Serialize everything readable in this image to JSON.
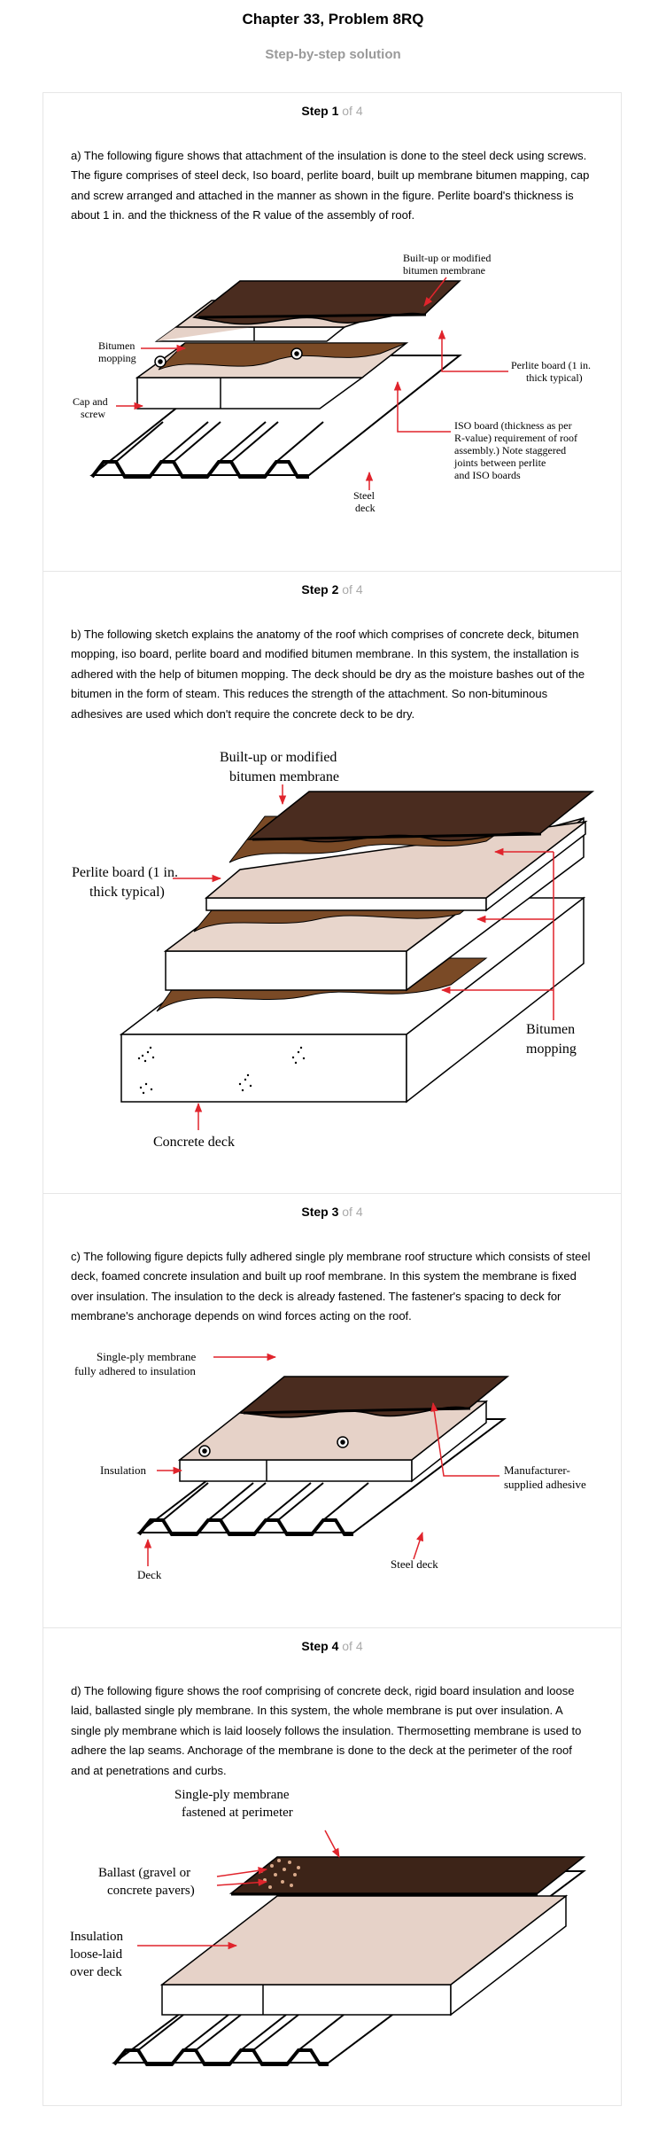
{
  "header": {
    "title": "Chapter 33, Problem 8RQ",
    "subtitle": "Step-by-step solution"
  },
  "steps": [
    {
      "label": "Step 1",
      "of": "of 4",
      "text": "a) The following figure shows that attachment of the insulation is done to the steel deck using screws. The figure comprises of steel deck, Iso board, perlite board, built up membrane bitumen mapping, cap and screw arranged and attached in the manner as shown in the figure. Perlite board's thickness is about 1 in. and the thickness of the R value of the assembly of roof.",
      "figure": {
        "membrane_1": "Built-up or modified",
        "membrane_2": "bitumen membrane",
        "bitumen_1": "Bitumen",
        "bitumen_2": "mopping",
        "cap_1": "Cap and",
        "cap_2": "screw",
        "perlite_1": "Perlite board (1 in.",
        "perlite_2": "thick typical)",
        "iso_1": "ISO board (thickness as per",
        "iso_2": "R-value) requirement of roof",
        "iso_3": "assembly.) Note staggered",
        "iso_4": "joints between perlite",
        "iso_5": "and ISO boards",
        "deck_1": "Steel",
        "deck_2": "deck"
      }
    },
    {
      "label": "Step 2",
      "of": "of 4",
      "text": "b) The following sketch explains the anatomy of the roof which comprises of concrete deck, bitumen mopping, iso board, perlite board and modified bitumen membrane. In this system, the installation is adhered with the help of bitumen mopping. The deck should be dry as the moisture bashes out of the bitumen in the form of steam. This reduces the strength of the attachment. So non-bituminous adhesives are used which don't require the concrete deck to be dry.",
      "figure": {
        "membrane_1": "Built-up or modified",
        "membrane_2": "bitumen membrane",
        "perlite_1": "Perlite board (1 in.",
        "perlite_2": "thick typical)",
        "bitumen_1": "Bitumen",
        "bitumen_2": "mopping",
        "deck": "Concrete deck"
      }
    },
    {
      "label": "Step 3",
      "of": "of 4",
      "text": "c) The following figure depicts fully adhered single ply membrane roof structure which consists of steel deck, foamed concrete insulation and built up roof membrane. In this system the membrane is fixed over insulation. The insulation to the deck is already fastened. The fastener's spacing to deck for membrane's anchorage depends on wind forces acting on the roof.",
      "figure": {
        "membrane_1": "Single-ply membrane",
        "membrane_2": "fully adhered to insulation",
        "insulation": "Insulation",
        "adhesive_1": "Manufacturer-",
        "adhesive_2": "supplied adhesive",
        "deck": "Deck",
        "steel_deck": "Steel deck"
      }
    },
    {
      "label": "Step 4",
      "of": "of 4",
      "text": "d) The following figure shows the roof comprising of concrete deck, rigid board insulation and loose laid, ballasted single ply membrane. In this system, the whole membrane is put over insulation. A single ply membrane which is laid loosely follows the insulation. Thermosetting membrane is used to adhere the lap seams. Anchorage of the membrane is done to the deck at the perimeter of the roof and at penetrations and curbs.",
      "figure": {
        "membrane_1": "Single-ply membrane",
        "membrane_2": "fastened at perimeter",
        "ballast_1": "Ballast (gravel or",
        "ballast_2": "concrete pavers)",
        "insulation_1": "Insulation",
        "insulation_2": "loose-laid",
        "insulation_3": "over deck"
      }
    }
  ],
  "colors": {
    "membrane": "#4a2c1f",
    "mopping": "#7a4a26",
    "board": "#e6d2c8",
    "arrow": "#e0242c"
  }
}
